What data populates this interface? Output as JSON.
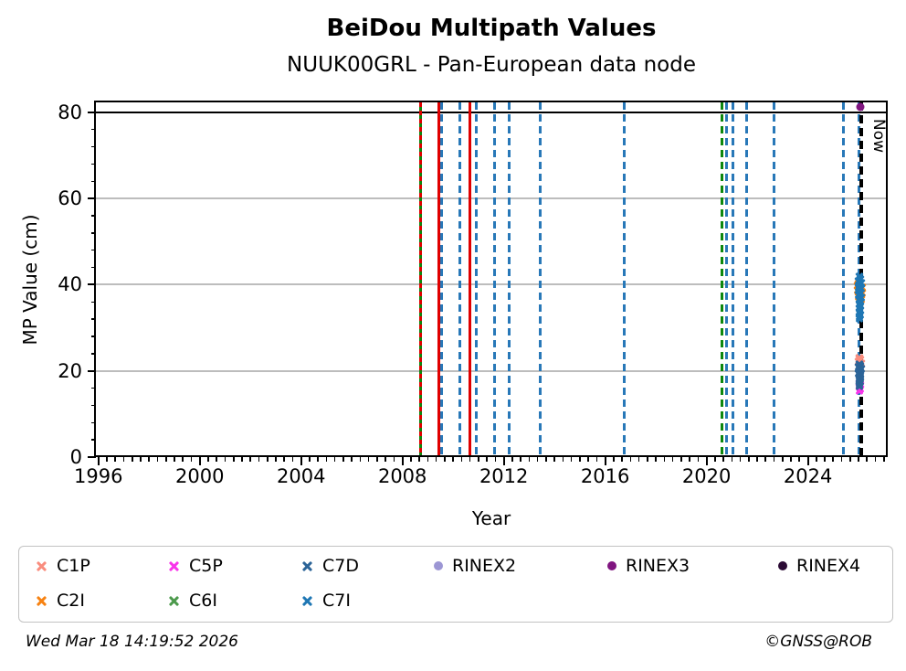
{
  "footer": {
    "timestamp": "Wed Mar 18 14:19:52 2026",
    "credit": "©GNSS@ROB"
  },
  "chart_data": {
    "type": "scatter",
    "title": "BeiDou Multipath Values",
    "subtitle": "NUUK00GRL - Pan-European data node",
    "xlabel": "Year",
    "ylabel": "MP Value (cm)",
    "xlim": [
      1995.9,
      2027.15
    ],
    "ylim": [
      0,
      82.3
    ],
    "x_major_ticks": [
      1996,
      2000,
      2004,
      2008,
      2012,
      2016,
      2020,
      2024
    ],
    "x_minor_tick_interval": 0.3333,
    "y_major_ticks": [
      0,
      20,
      40,
      60,
      80
    ],
    "y_minor_tick_interval": 4,
    "grid_y": [
      20,
      40,
      60
    ],
    "grid_color": "#bdbdbd",
    "threshold_line": {
      "y": 80,
      "color": "#000000"
    },
    "now_marker": {
      "year": 2026.1,
      "label": "Now",
      "color": "#000000",
      "width": 3.5,
      "dash": [
        9,
        5
      ]
    },
    "event_lines": [
      {
        "year": 2008.72,
        "color": "#0d870d",
        "style": "solid",
        "width": 3
      },
      {
        "year": 2008.72,
        "color": "#e00000",
        "style": "dashed",
        "width": 2.6,
        "dash": [
          5,
          4
        ]
      },
      {
        "year": 2009.42,
        "color": "#e00000",
        "style": "solid",
        "width": 3
      },
      {
        "year": 2009.56,
        "color": "#2878b8",
        "style": "dashed",
        "width": 3,
        "dash": [
          8,
          5
        ]
      },
      {
        "year": 2010.25,
        "color": "#2878b8",
        "style": "dashed",
        "width": 3,
        "dash": [
          8,
          5
        ]
      },
      {
        "year": 2010.66,
        "color": "#e00000",
        "style": "solid",
        "width": 3
      },
      {
        "year": 2010.92,
        "color": "#2878b8",
        "style": "dashed",
        "width": 3,
        "dash": [
          8,
          5
        ]
      },
      {
        "year": 2011.62,
        "color": "#2878b8",
        "style": "dashed",
        "width": 3,
        "dash": [
          8,
          5
        ]
      },
      {
        "year": 2012.22,
        "color": "#2878b8",
        "style": "dashed",
        "width": 3,
        "dash": [
          8,
          5
        ]
      },
      {
        "year": 2013.42,
        "color": "#2878b8",
        "style": "dashed",
        "width": 3,
        "dash": [
          8,
          5
        ]
      },
      {
        "year": 2016.76,
        "color": "#2878b8",
        "style": "dashed",
        "width": 3,
        "dash": [
          8,
          5
        ]
      },
      {
        "year": 2020.62,
        "color": "#0d870d",
        "style": "dashed",
        "width": 3,
        "dash": [
          8,
          5
        ]
      },
      {
        "year": 2020.8,
        "color": "#2878b8",
        "style": "dashed",
        "width": 3,
        "dash": [
          8,
          5
        ]
      },
      {
        "year": 2021.03,
        "color": "#2878b8",
        "style": "dashed",
        "width": 3,
        "dash": [
          8,
          5
        ]
      },
      {
        "year": 2021.58,
        "color": "#2878b8",
        "style": "dashed",
        "width": 3,
        "dash": [
          8,
          5
        ]
      },
      {
        "year": 2022.66,
        "color": "#2878b8",
        "style": "dashed",
        "width": 3,
        "dash": [
          8,
          5
        ]
      },
      {
        "year": 2025.4,
        "color": "#2878b8",
        "style": "dashed",
        "width": 3,
        "dash": [
          8,
          5
        ]
      },
      {
        "year": 2026.02,
        "color": "#2878b8",
        "style": "dashed",
        "width": 3,
        "dash": [
          8,
          5
        ]
      }
    ],
    "series": [
      {
        "name": "C1P",
        "color": "#f98d7e",
        "marker": "x",
        "points": [
          [
            2026.02,
            23.1
          ],
          [
            2026.07,
            22.7
          ],
          [
            2026.05,
            22.9
          ],
          [
            2026.0,
            22.3
          ],
          [
            2026.09,
            21.9
          ],
          [
            2026.04,
            21.5
          ],
          [
            2026.03,
            21.1
          ]
        ]
      },
      {
        "name": "C2I",
        "color": "#f78212",
        "marker": "x",
        "points": [
          [
            2026.0,
            40.3
          ],
          [
            2025.96,
            39.9
          ],
          [
            2026.14,
            39.4
          ],
          [
            2025.97,
            38.7
          ],
          [
            2026.13,
            38.1
          ],
          [
            2025.98,
            37.3
          ],
          [
            2026.12,
            36.7
          ]
        ]
      },
      {
        "name": "C5P",
        "color": "#f935ea",
        "marker": "x",
        "points": [
          [
            2026.03,
            17.2
          ],
          [
            2026.07,
            16.8
          ],
          [
            2026.02,
            16.3
          ],
          [
            2026.06,
            15.9
          ],
          [
            2026.04,
            15.5
          ]
        ]
      },
      {
        "name": "C6I",
        "color": "#4c9a4c",
        "marker": "x",
        "points": []
      },
      {
        "name": "C7D",
        "color": "#2c6498",
        "marker": "x",
        "points": [
          [
            2026.03,
            21.6
          ],
          [
            2026.07,
            21.2
          ],
          [
            2026.0,
            20.9
          ],
          [
            2026.09,
            20.5
          ],
          [
            2026.03,
            20.1
          ],
          [
            2026.06,
            19.7
          ],
          [
            2026.01,
            19.4
          ],
          [
            2026.08,
            19.0
          ],
          [
            2026.04,
            18.6
          ],
          [
            2026.06,
            18.2
          ],
          [
            2026.02,
            17.9
          ],
          [
            2026.07,
            17.5
          ],
          [
            2026.04,
            17.1
          ],
          [
            2026.05,
            16.7
          ],
          [
            2026.03,
            16.4
          ]
        ]
      },
      {
        "name": "C7I",
        "color": "#1f77b4",
        "marker": "x",
        "points": [
          [
            2026.03,
            42.0
          ],
          [
            2026.08,
            41.4
          ],
          [
            2026.0,
            40.9
          ],
          [
            2026.1,
            40.4
          ],
          [
            2026.04,
            40.0
          ],
          [
            2025.99,
            39.5
          ],
          [
            2026.09,
            39.1
          ],
          [
            2026.03,
            38.7
          ],
          [
            2026.07,
            38.2
          ],
          [
            2026.0,
            37.8
          ],
          [
            2026.05,
            37.4
          ],
          [
            2026.1,
            37.0
          ],
          [
            2026.02,
            36.5
          ],
          [
            2026.06,
            36.1
          ],
          [
            2026.03,
            35.6
          ],
          [
            2026.08,
            35.1
          ],
          [
            2026.04,
            34.6
          ],
          [
            2026.06,
            34.1
          ],
          [
            2026.02,
            33.6
          ],
          [
            2026.07,
            33.1
          ],
          [
            2026.04,
            32.6
          ],
          [
            2026.05,
            32.1
          ]
        ]
      },
      {
        "name": "RINEX2",
        "color": "#9c96d4",
        "marker": "circle",
        "points": []
      },
      {
        "name": "RINEX3",
        "color": "#801580",
        "marker": "circle",
        "size": 9,
        "points": [
          [
            2026.08,
            81.2
          ]
        ]
      },
      {
        "name": "RINEX4",
        "color": "#2b0b35",
        "marker": "circle",
        "points": []
      }
    ],
    "legend": {
      "position": "bottom",
      "rows": [
        [
          "C1P",
          "C5P",
          "C7D",
          "RINEX2",
          "RINEX3",
          "RINEX4"
        ],
        [
          "C2I",
          "C6I",
          "C7I"
        ]
      ]
    }
  }
}
